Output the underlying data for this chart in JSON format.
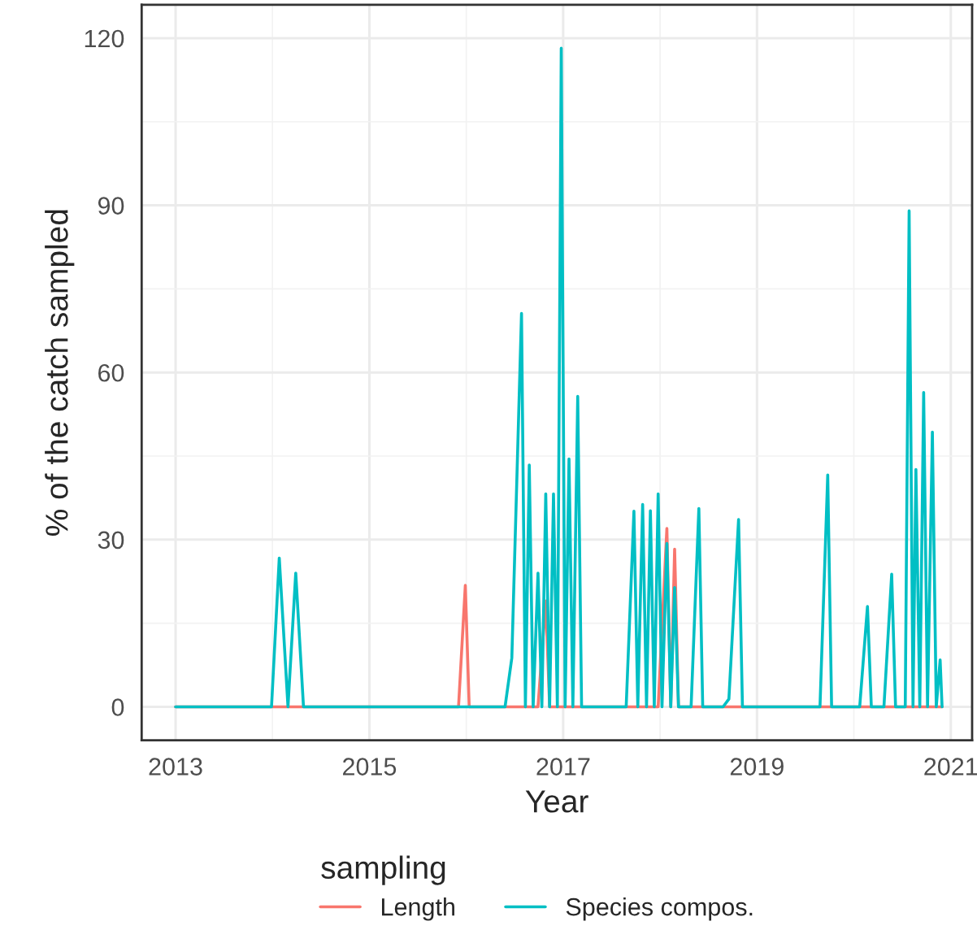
{
  "chart_data": {
    "type": "line",
    "xlabel": "Year",
    "ylabel": "% of the catch sampled",
    "legend_title": "sampling",
    "legend": "bottom",
    "grid": true,
    "xlim": [
      2012.65,
      2021.22
    ],
    "xticks": [
      2013,
      2015,
      2017,
      2019,
      2021
    ],
    "ylim": [
      -6,
      126
    ],
    "yticks": [
      0,
      30,
      60,
      90,
      120
    ],
    "series": [
      {
        "name": "Length",
        "color": "#f8766d",
        "x": [
          2013.0,
          2015.92,
          2015.99,
          2016.03,
          2016.74,
          2016.82,
          2016.86,
          2017.98,
          2018.07,
          2018.11,
          2018.15,
          2018.19,
          2020.91
        ],
        "values": [
          0,
          0,
          21.8,
          0,
          0,
          19,
          0,
          0,
          32,
          0,
          28.3,
          0,
          0
        ]
      },
      {
        "name": "Species compos.",
        "color": "#00bfc4",
        "x": [
          2013.0,
          2013.99,
          2014.07,
          2014.16,
          2014.24,
          2014.32,
          2016.4,
          2016.47,
          2016.57,
          2016.61,
          2016.65,
          2016.69,
          2016.74,
          2016.78,
          2016.82,
          2016.86,
          2016.9,
          2016.94,
          2016.98,
          2017.02,
          2017.06,
          2017.1,
          2017.15,
          2017.19,
          2017.65,
          2017.73,
          2017.77,
          2017.82,
          2017.86,
          2017.9,
          2017.94,
          2017.98,
          2018.02,
          2018.07,
          2018.11,
          2018.15,
          2018.19,
          2018.32,
          2018.4,
          2018.44,
          2018.65,
          2018.71,
          2018.81,
          2018.85,
          2019.65,
          2019.73,
          2019.77,
          2020.06,
          2020.14,
          2020.18,
          2020.31,
          2020.39,
          2020.43,
          2020.53,
          2020.57,
          2020.61,
          2020.64,
          2020.68,
          2020.72,
          2020.76,
          2020.81,
          2020.85,
          2020.89,
          2020.91
        ],
        "values": [
          0,
          0,
          26.7,
          0,
          24,
          0,
          0,
          8.8,
          70.6,
          0,
          43.4,
          0,
          24,
          0,
          38.2,
          0,
          38.2,
          0,
          118.2,
          0,
          44.5,
          0,
          55.7,
          0,
          0,
          35.1,
          0,
          36.3,
          0,
          35.2,
          0,
          38.2,
          0,
          29.3,
          0,
          21.4,
          0,
          0,
          35.6,
          0,
          0,
          1.4,
          33.6,
          0,
          0,
          41.6,
          0,
          0,
          18,
          0,
          0,
          23.8,
          0,
          0,
          89,
          0,
          42.6,
          0,
          56.4,
          0,
          49.3,
          0,
          8.4,
          0
        ]
      }
    ]
  }
}
